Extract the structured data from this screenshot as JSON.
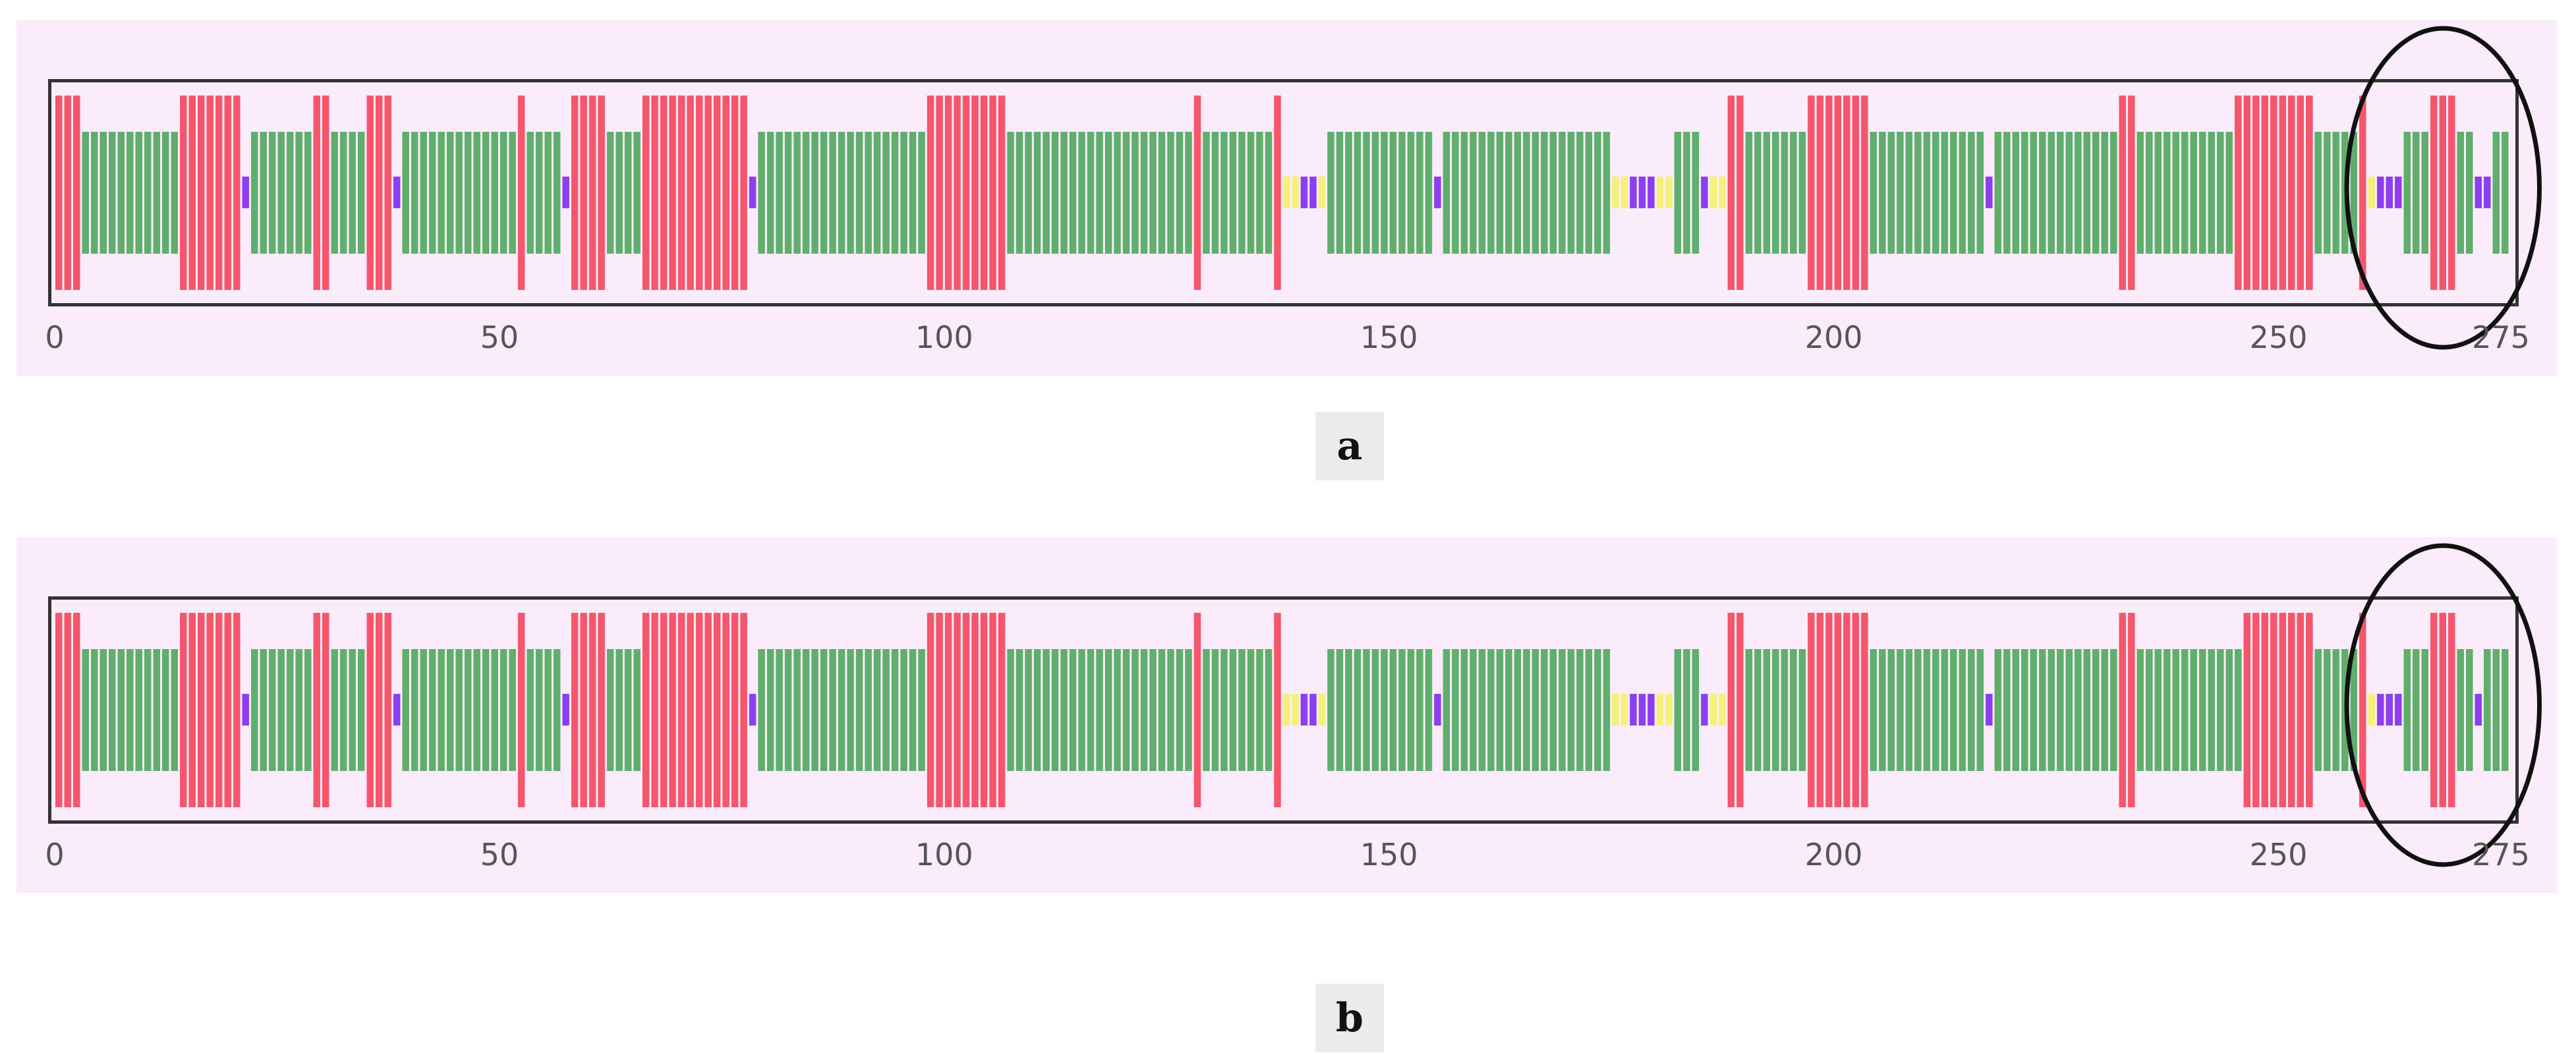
{
  "colors": {
    "background": "#faecfb",
    "frame": "#333333",
    "red": "#f5566b",
    "green": "#5fae6c",
    "purple": "#8b3ff0",
    "yellow": "#f6f07a",
    "circle": "#111111"
  },
  "axis": {
    "min": 0,
    "max": 275,
    "ticks": [
      {
        "value": 0,
        "label": "0"
      },
      {
        "value": 50,
        "label": "50"
      },
      {
        "value": 100,
        "label": "100"
      },
      {
        "value": 150,
        "label": "150"
      },
      {
        "value": 200,
        "label": "200"
      },
      {
        "value": 250,
        "label": "250"
      },
      {
        "value": 275,
        "label": "275"
      }
    ]
  },
  "panels": [
    {
      "id": "a",
      "label": "a",
      "circle_range": [
        261,
        276
      ],
      "segments": [
        {
          "type": "red",
          "start": 0,
          "end": 3
        },
        {
          "type": "green",
          "start": 3,
          "end": 14
        },
        {
          "type": "red",
          "start": 14,
          "end": 21
        },
        {
          "type": "purple",
          "start": 21,
          "end": 22
        },
        {
          "type": "green",
          "start": 22,
          "end": 29
        },
        {
          "type": "red",
          "start": 29,
          "end": 31
        },
        {
          "type": "green",
          "start": 31,
          "end": 35
        },
        {
          "type": "red",
          "start": 35,
          "end": 38
        },
        {
          "type": "purple",
          "start": 38,
          "end": 39
        },
        {
          "type": "green",
          "start": 39,
          "end": 52
        },
        {
          "type": "red",
          "start": 52,
          "end": 53
        },
        {
          "type": "green",
          "start": 53,
          "end": 57
        },
        {
          "type": "purple",
          "start": 57,
          "end": 58
        },
        {
          "type": "red",
          "start": 58,
          "end": 62
        },
        {
          "type": "green",
          "start": 62,
          "end": 66
        },
        {
          "type": "red",
          "start": 66,
          "end": 71
        },
        {
          "type": "red",
          "start": 71,
          "end": 78
        },
        {
          "type": "purple",
          "start": 78,
          "end": 79
        },
        {
          "type": "green",
          "start": 79,
          "end": 98
        },
        {
          "type": "red",
          "start": 98,
          "end": 107
        },
        {
          "type": "green",
          "start": 107,
          "end": 128
        },
        {
          "type": "red",
          "start": 128,
          "end": 129
        },
        {
          "type": "green",
          "start": 129,
          "end": 137
        },
        {
          "type": "red",
          "start": 137,
          "end": 138
        },
        {
          "type": "yellow",
          "start": 138,
          "end": 140
        },
        {
          "type": "purple",
          "start": 140,
          "end": 142
        },
        {
          "type": "yellow",
          "start": 142,
          "end": 143
        },
        {
          "type": "green",
          "start": 143,
          "end": 155
        },
        {
          "type": "purple",
          "start": 155,
          "end": 156
        },
        {
          "type": "green",
          "start": 156,
          "end": 175
        },
        {
          "type": "yellow",
          "start": 175,
          "end": 177
        },
        {
          "type": "purple",
          "start": 177,
          "end": 180
        },
        {
          "type": "yellow",
          "start": 180,
          "end": 182
        },
        {
          "type": "green",
          "start": 182,
          "end": 185
        },
        {
          "type": "purple",
          "start": 185,
          "end": 186
        },
        {
          "type": "yellow",
          "start": 186,
          "end": 188
        },
        {
          "type": "red",
          "start": 188,
          "end": 190
        },
        {
          "type": "green",
          "start": 190,
          "end": 197
        },
        {
          "type": "red",
          "start": 197,
          "end": 204
        },
        {
          "type": "green",
          "start": 204,
          "end": 217
        },
        {
          "type": "purple",
          "start": 217,
          "end": 218
        },
        {
          "type": "green",
          "start": 218,
          "end": 232
        },
        {
          "type": "red",
          "start": 232,
          "end": 234
        },
        {
          "type": "green",
          "start": 234,
          "end": 245
        },
        {
          "type": "red",
          "start": 245,
          "end": 254
        },
        {
          "type": "green",
          "start": 254,
          "end": 259
        },
        {
          "type": "red",
          "start": 259,
          "end": 260
        },
        {
          "type": "yellow",
          "start": 260,
          "end": 261
        },
        {
          "type": "purple",
          "start": 261,
          "end": 264
        },
        {
          "type": "green",
          "start": 264,
          "end": 267
        },
        {
          "type": "red",
          "start": 267,
          "end": 270
        },
        {
          "type": "green",
          "start": 270,
          "end": 272
        },
        {
          "type": "purple",
          "start": 272,
          "end": 274
        },
        {
          "type": "green",
          "start": 274,
          "end": 276
        }
      ]
    },
    {
      "id": "b",
      "label": "b",
      "circle_range": [
        261,
        276
      ],
      "segments": [
        {
          "type": "red",
          "start": 0,
          "end": 3
        },
        {
          "type": "green",
          "start": 3,
          "end": 14
        },
        {
          "type": "red",
          "start": 14,
          "end": 21
        },
        {
          "type": "purple",
          "start": 21,
          "end": 22
        },
        {
          "type": "green",
          "start": 22,
          "end": 29
        },
        {
          "type": "red",
          "start": 29,
          "end": 31
        },
        {
          "type": "green",
          "start": 31,
          "end": 35
        },
        {
          "type": "red",
          "start": 35,
          "end": 38
        },
        {
          "type": "purple",
          "start": 38,
          "end": 39
        },
        {
          "type": "green",
          "start": 39,
          "end": 52
        },
        {
          "type": "red",
          "start": 52,
          "end": 53
        },
        {
          "type": "green",
          "start": 53,
          "end": 57
        },
        {
          "type": "purple",
          "start": 57,
          "end": 58
        },
        {
          "type": "red",
          "start": 58,
          "end": 62
        },
        {
          "type": "green",
          "start": 62,
          "end": 66
        },
        {
          "type": "red",
          "start": 66,
          "end": 71
        },
        {
          "type": "red",
          "start": 71,
          "end": 78
        },
        {
          "type": "purple",
          "start": 78,
          "end": 79
        },
        {
          "type": "green",
          "start": 79,
          "end": 98
        },
        {
          "type": "red",
          "start": 98,
          "end": 107
        },
        {
          "type": "green",
          "start": 107,
          "end": 128
        },
        {
          "type": "red",
          "start": 128,
          "end": 129
        },
        {
          "type": "green",
          "start": 129,
          "end": 137
        },
        {
          "type": "red",
          "start": 137,
          "end": 138
        },
        {
          "type": "yellow",
          "start": 138,
          "end": 140
        },
        {
          "type": "purple",
          "start": 140,
          "end": 142
        },
        {
          "type": "yellow",
          "start": 142,
          "end": 143
        },
        {
          "type": "green",
          "start": 143,
          "end": 155
        },
        {
          "type": "purple",
          "start": 155,
          "end": 156
        },
        {
          "type": "green",
          "start": 156,
          "end": 175
        },
        {
          "type": "yellow",
          "start": 175,
          "end": 177
        },
        {
          "type": "purple",
          "start": 177,
          "end": 180
        },
        {
          "type": "yellow",
          "start": 180,
          "end": 182
        },
        {
          "type": "green",
          "start": 182,
          "end": 185
        },
        {
          "type": "purple",
          "start": 185,
          "end": 186
        },
        {
          "type": "yellow",
          "start": 186,
          "end": 188
        },
        {
          "type": "red",
          "start": 188,
          "end": 190
        },
        {
          "type": "green",
          "start": 190,
          "end": 197
        },
        {
          "type": "red",
          "start": 197,
          "end": 204
        },
        {
          "type": "green",
          "start": 204,
          "end": 217
        },
        {
          "type": "purple",
          "start": 217,
          "end": 218
        },
        {
          "type": "green",
          "start": 218,
          "end": 232
        },
        {
          "type": "red",
          "start": 232,
          "end": 234
        },
        {
          "type": "green",
          "start": 234,
          "end": 246
        },
        {
          "type": "red",
          "start": 246,
          "end": 254
        },
        {
          "type": "green",
          "start": 254,
          "end": 259
        },
        {
          "type": "red",
          "start": 259,
          "end": 260
        },
        {
          "type": "yellow",
          "start": 260,
          "end": 261
        },
        {
          "type": "purple",
          "start": 261,
          "end": 264
        },
        {
          "type": "green",
          "start": 264,
          "end": 267
        },
        {
          "type": "red",
          "start": 267,
          "end": 270
        },
        {
          "type": "green",
          "start": 270,
          "end": 272
        },
        {
          "type": "purple",
          "start": 272,
          "end": 273
        },
        {
          "type": "green",
          "start": 273,
          "end": 276
        }
      ]
    }
  ]
}
